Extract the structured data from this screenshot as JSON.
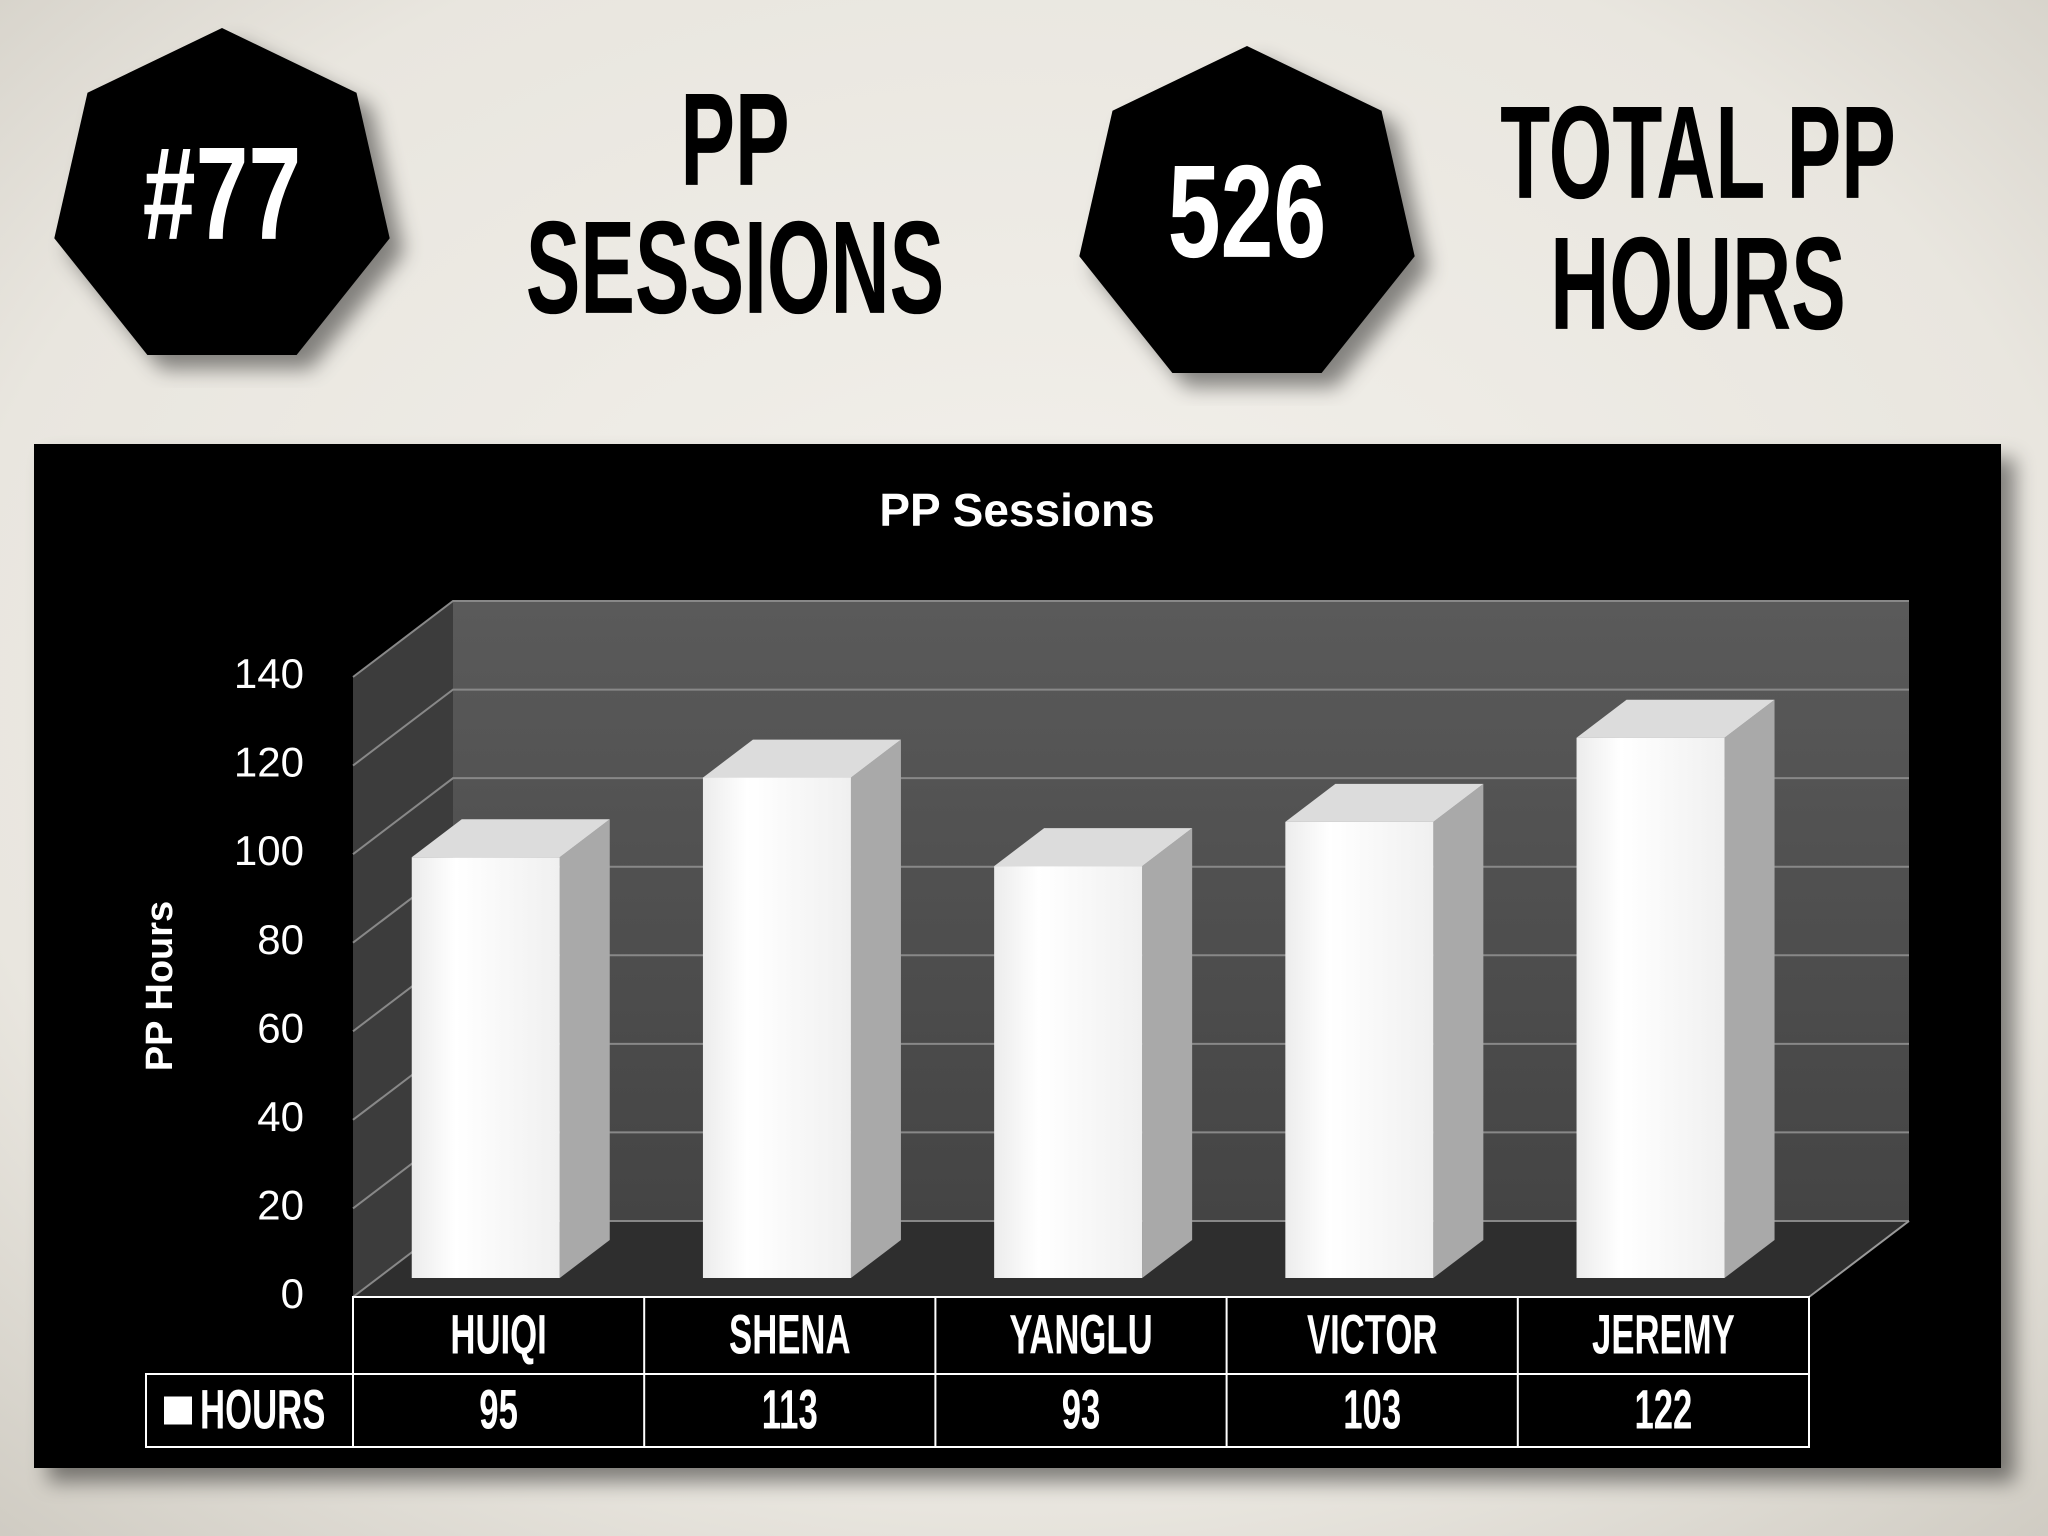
{
  "stats": [
    {
      "badge": "#77",
      "caption": [
        "PP",
        "SESSIONS"
      ]
    },
    {
      "badge": 526,
      "caption": [
        "TOTAL PP",
        "HOURS"
      ]
    }
  ],
  "chart_data": {
    "type": "bar",
    "title": "PP Sessions",
    "y_label": "PP Hours",
    "categories": [
      "HUIQI",
      "SHENA",
      "YANGLU",
      "VICTOR",
      "JEREMY"
    ],
    "series": [
      {
        "name": "HOURS",
        "color": "#ffffff",
        "values": [
          95,
          113,
          93,
          103,
          122
        ]
      }
    ],
    "ylim": [
      0,
      140
    ],
    "yticks": [
      0,
      20,
      40,
      60,
      80,
      100,
      120,
      140
    ],
    "grid": true,
    "data_table": true
  }
}
